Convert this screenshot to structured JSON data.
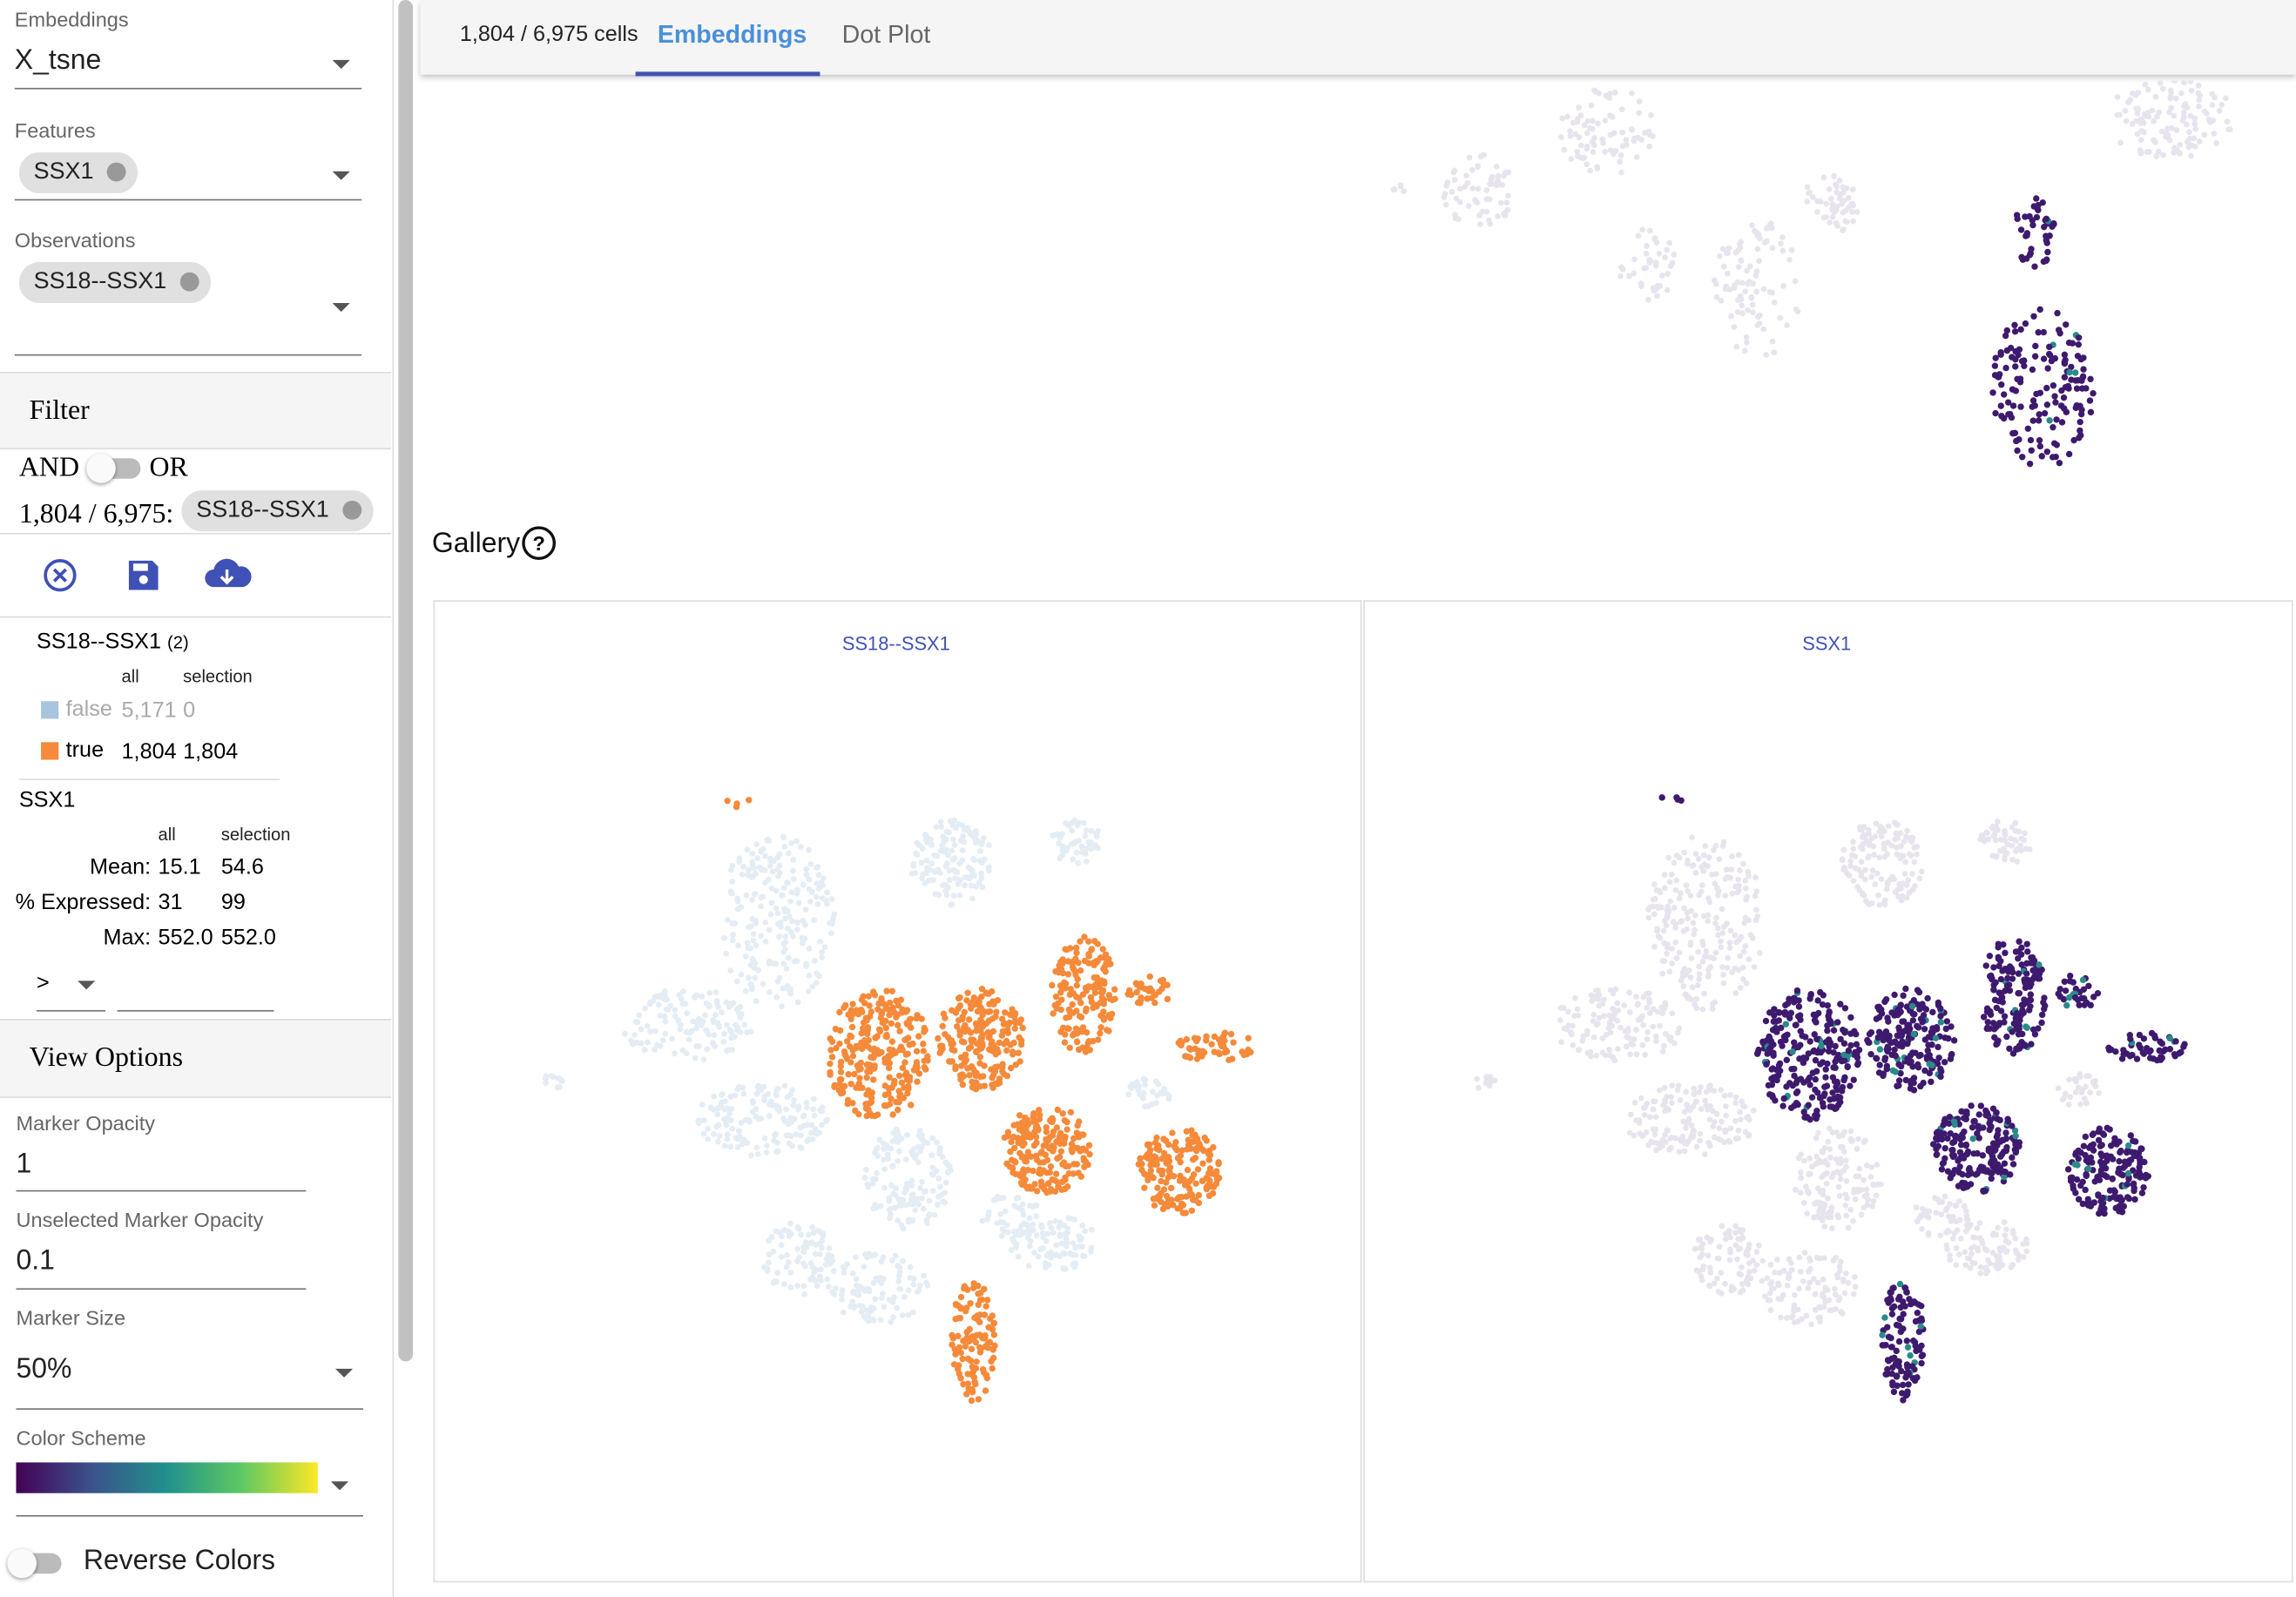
{
  "header": {
    "cell_count": "1,804 / 6,975 cells",
    "tabs": [
      "Embeddings",
      "Dot Plot"
    ]
  },
  "sidebar": {
    "embeddings": {
      "label": "Embeddings",
      "value": "X_tsne"
    },
    "features": {
      "label": "Features",
      "chips": [
        "SSX1"
      ]
    },
    "observations": {
      "label": "Observations",
      "chips": [
        "SS18--SSX1"
      ]
    },
    "filter": {
      "title": "Filter",
      "and": "AND",
      "or": "OR",
      "count": "1,804 / 6,975:",
      "chip": "SS18--SSX1"
    },
    "obs_summary": {
      "name": "SS18--SSX1",
      "count": "(2)",
      "columns": [
        "all",
        "selection"
      ],
      "rows": [
        [
          "false",
          "5,171",
          "0"
        ],
        [
          "true",
          "1,804",
          "1,804"
        ]
      ]
    },
    "feature_summary": {
      "name": "SSX1",
      "columns": [
        "all",
        "selection"
      ],
      "rows": [
        [
          "Mean:",
          "15.1",
          "54.6"
        ],
        [
          "% Expressed:",
          "31",
          "99"
        ],
        [
          "Max:",
          "552.0",
          "552.0"
        ]
      ],
      "operator": ">"
    },
    "view_options": {
      "title": "View Options",
      "marker_opacity": {
        "label": "Marker Opacity",
        "value": "1"
      },
      "unselected_opacity": {
        "label": "Unselected Marker Opacity",
        "value": "0.1"
      },
      "marker_size": {
        "label": "Marker Size",
        "value": "50%"
      },
      "color_scheme": {
        "label": "Color Scheme"
      },
      "reverse_colors": "Reverse Colors"
    }
  },
  "gallery": {
    "title": "Gallery",
    "panels": [
      {
        "title": "SS18--SSX1"
      },
      {
        "title": "SSX1"
      }
    ]
  }
}
